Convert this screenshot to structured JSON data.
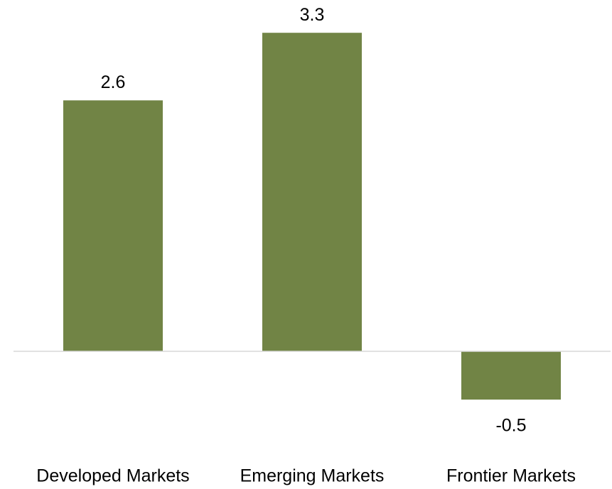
{
  "chart_data": {
    "type": "bar",
    "categories": [
      "Developed Markets",
      "Emerging Markets",
      "Frontier Markets"
    ],
    "values": [
      2.6,
      3.3,
      -0.5
    ],
    "color": "#718445",
    "ylim": [
      -0.8,
      3.6
    ]
  }
}
